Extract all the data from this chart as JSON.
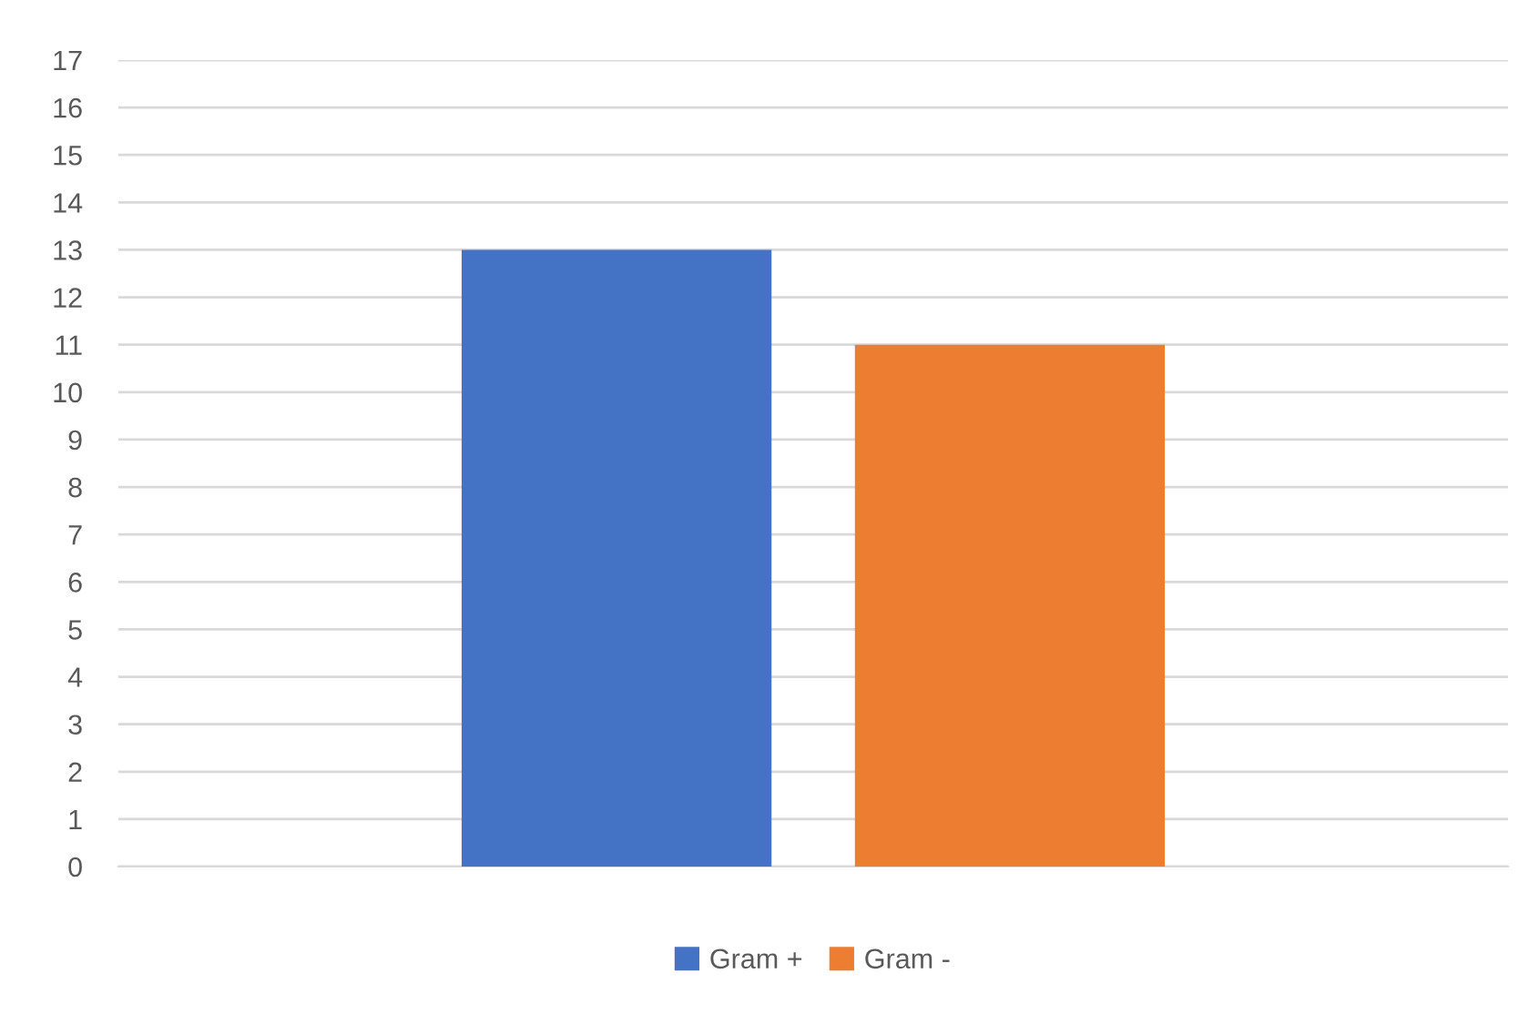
{
  "chart_data": {
    "type": "bar",
    "categories": [
      null
    ],
    "series": [
      {
        "name": "Gram +",
        "color": "#4472c4",
        "values": [
          13
        ]
      },
      {
        "name": "Gram -",
        "color": "#ed7d31",
        "values": [
          11
        ]
      }
    ],
    "ylim": [
      0,
      17
    ],
    "yticks": [
      0,
      1,
      2,
      3,
      4,
      5,
      6,
      7,
      8,
      9,
      10,
      11,
      12,
      13,
      14,
      15,
      16,
      17
    ],
    "grid": "y",
    "legend": "bottom"
  }
}
